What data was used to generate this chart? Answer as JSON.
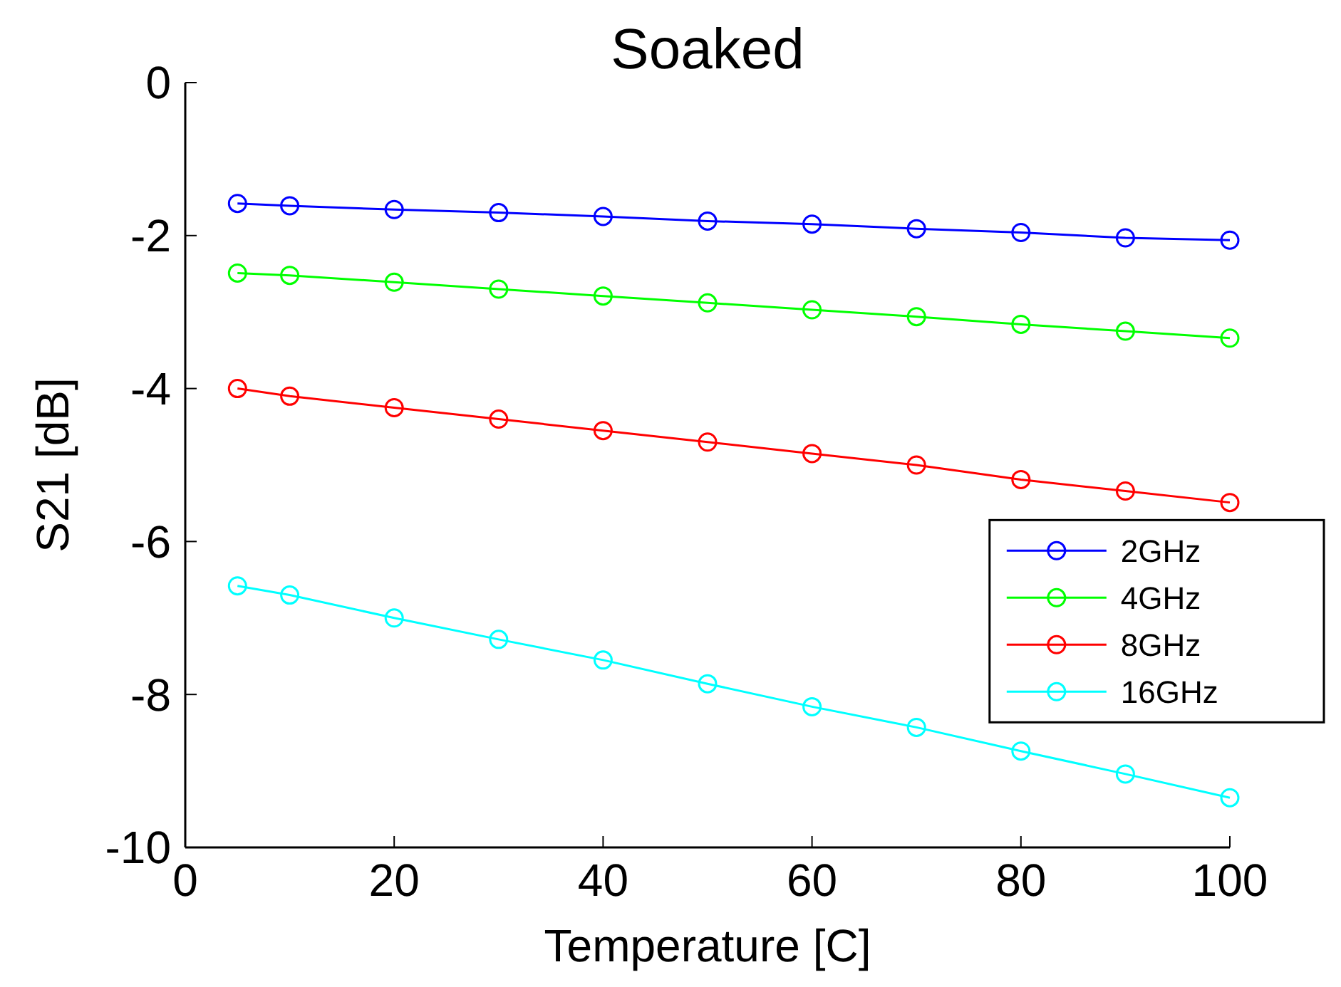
{
  "chart_data": {
    "type": "line",
    "title": "Soaked",
    "xlabel": "Temperature [C]",
    "ylabel": "S21 [dB]",
    "x": [
      5,
      10,
      20,
      30,
      40,
      50,
      60,
      70,
      80,
      90,
      100
    ],
    "xlim": [
      0,
      100
    ],
    "xticks": [
      0,
      20,
      40,
      60,
      80,
      100
    ],
    "ylim": [
      -10,
      0
    ],
    "yticks": [
      -10,
      -8,
      -6,
      -4,
      -2,
      0
    ],
    "grid": false,
    "legend": "right",
    "marker": "circle",
    "line_style": "solid",
    "series": [
      {
        "name": "2GHz",
        "color": "#0000ff",
        "values": [
          -1.58,
          -1.61,
          -1.66,
          -1.7,
          -1.75,
          -1.81,
          -1.85,
          -1.91,
          -1.96,
          -2.03,
          -2.06
        ]
      },
      {
        "name": "4GHz",
        "color": "#00ff00",
        "values": [
          -2.49,
          -2.52,
          -2.61,
          -2.7,
          -2.79,
          -2.88,
          -2.97,
          -3.06,
          -3.16,
          -3.25,
          -3.34
        ]
      },
      {
        "name": "8GHz",
        "color": "#ff0000",
        "values": [
          -4.0,
          -4.1,
          -4.25,
          -4.4,
          -4.55,
          -4.7,
          -4.85,
          -5.0,
          -5.19,
          -5.34,
          -5.49
        ]
      },
      {
        "name": "16GHz",
        "color": "#00ffff",
        "values": [
          -6.58,
          -6.7,
          -7.0,
          -7.28,
          -7.55,
          -7.86,
          -8.16,
          -8.43,
          -8.74,
          -9.04,
          -9.35
        ]
      }
    ]
  }
}
